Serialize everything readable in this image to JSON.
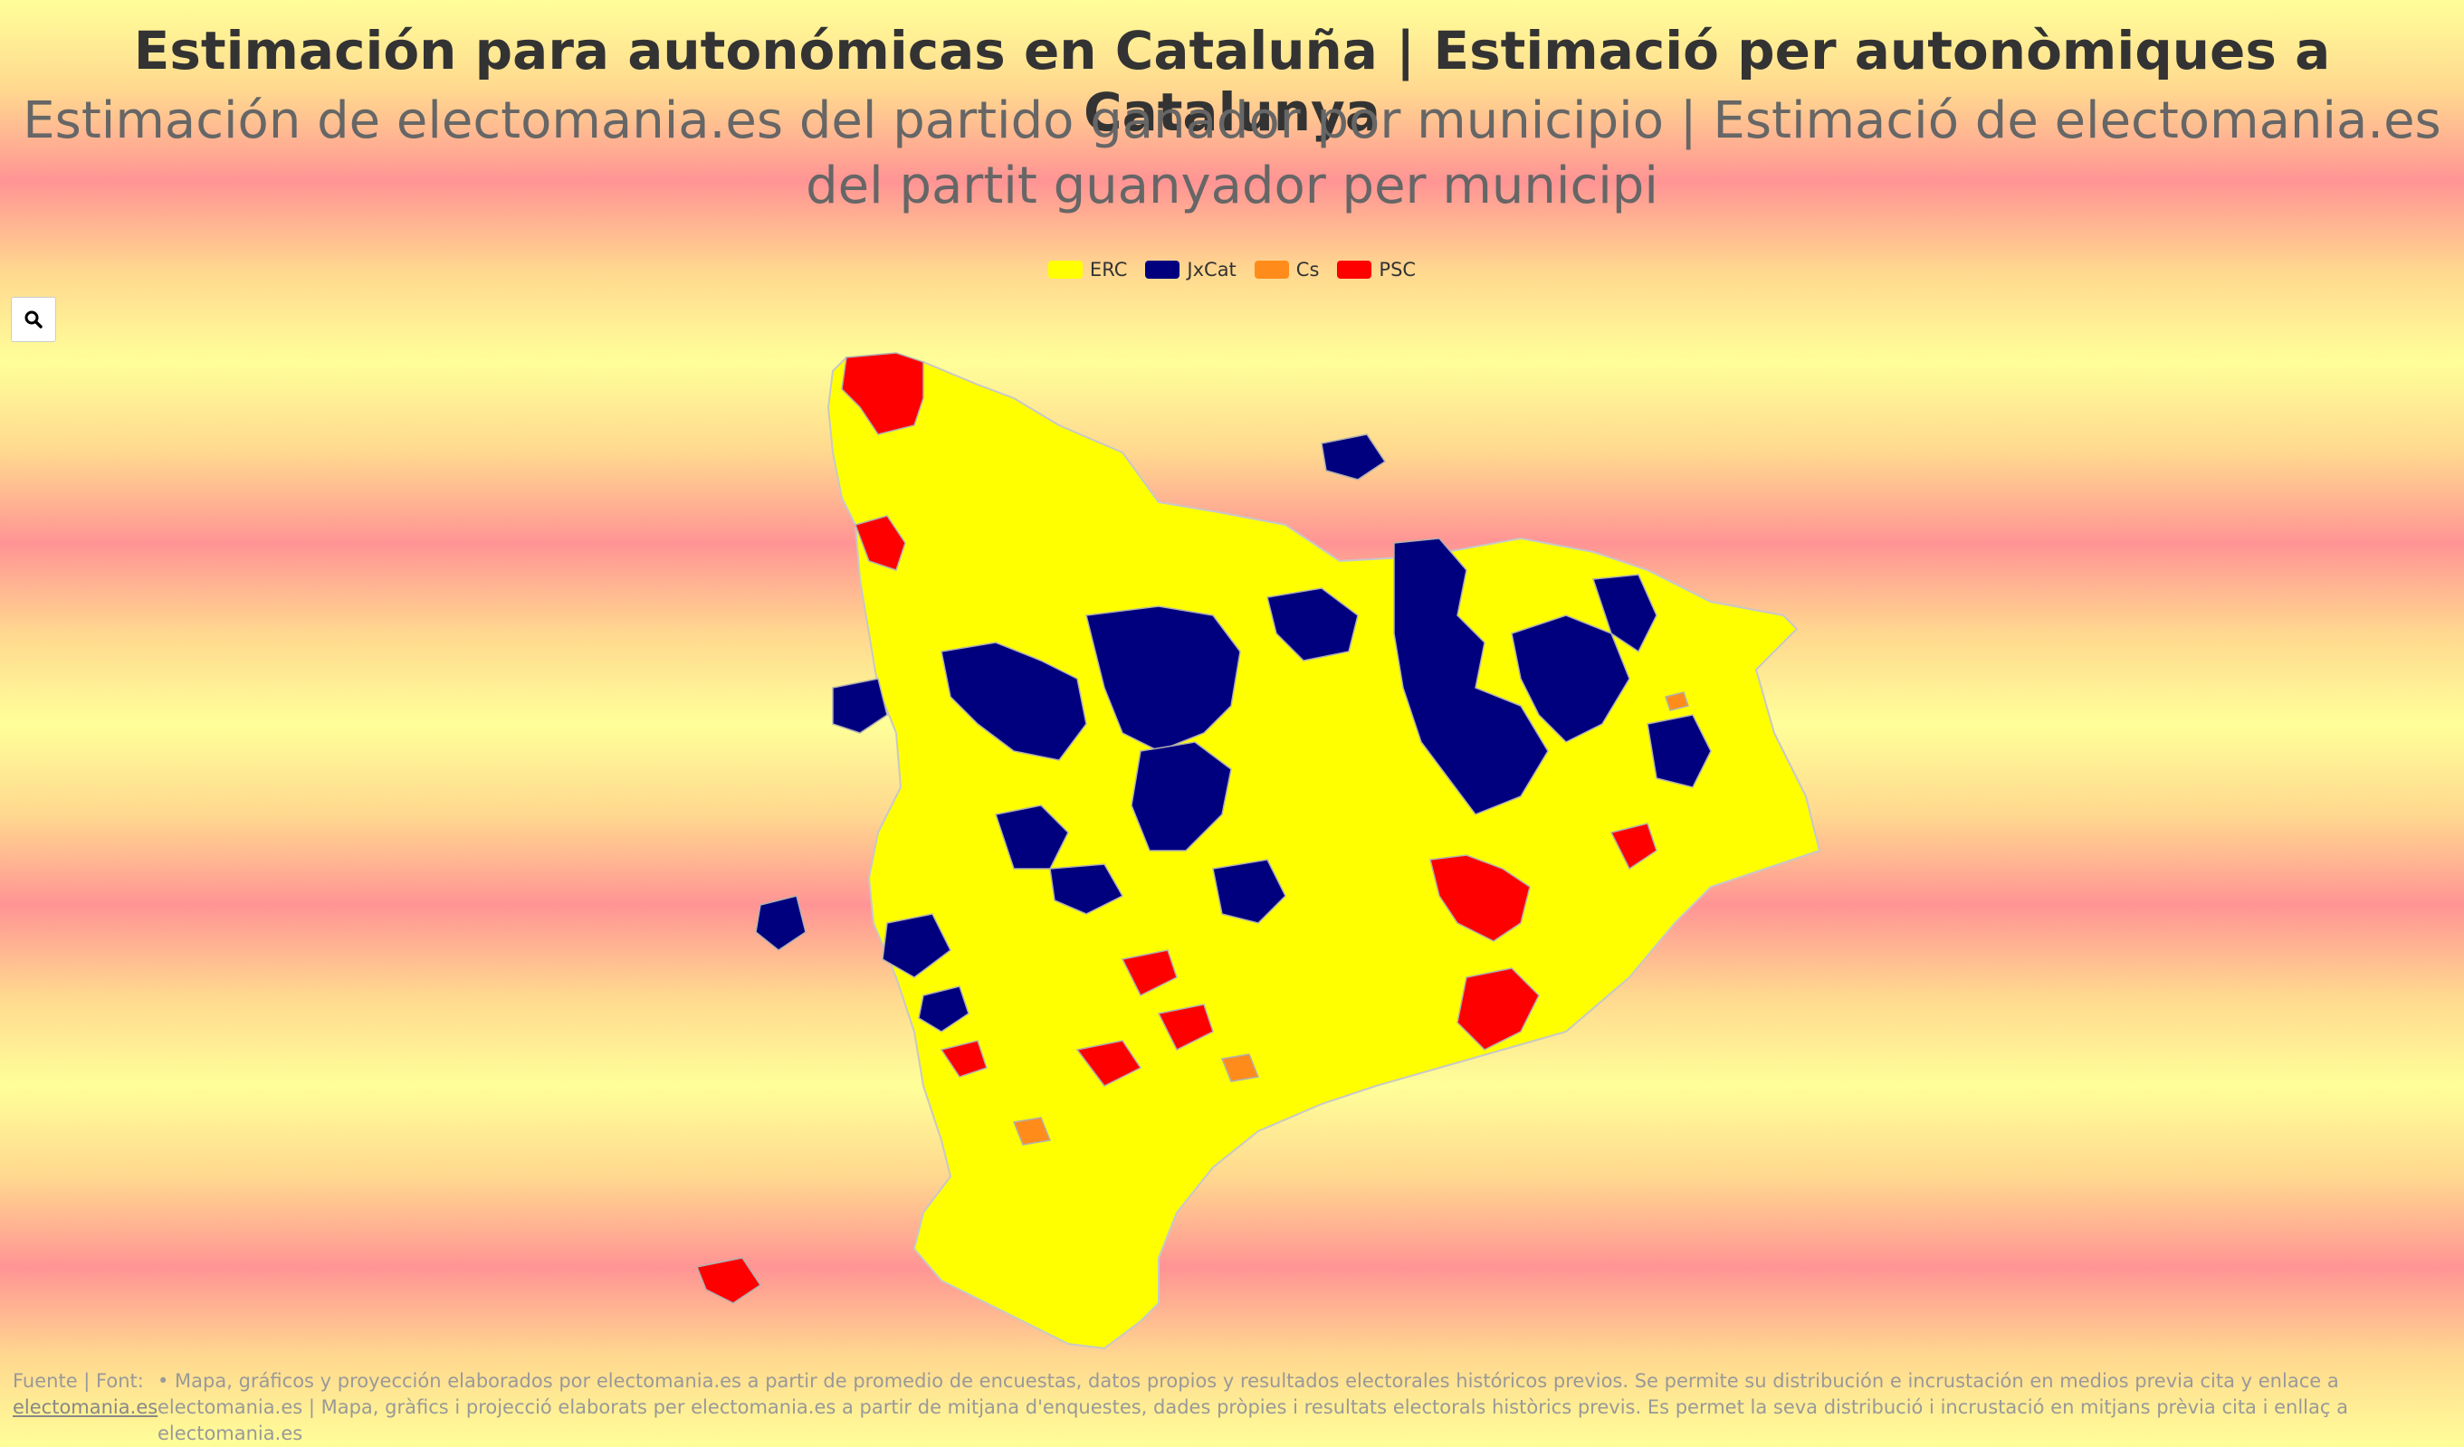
{
  "title": "Estimación para autonómicas en Cataluña | Estimació per autonòmiques a Catalunya",
  "subtitle": "Estimación de electomania.es del partido ganador por municipio | Estimació de electomania.es del partit guanyador per municipi",
  "legend": [
    {
      "label": "ERC",
      "color": "#ffff00"
    },
    {
      "label": "JxCat",
      "color": "#00007f"
    },
    {
      "label": "Cs",
      "color": "#ff8c1a"
    },
    {
      "label": "PSC",
      "color": "#ff0000"
    }
  ],
  "zoom": {
    "icon": "search-icon"
  },
  "footer": {
    "label": "Fuente | Font:",
    "link": "electomania.es",
    "text": "• Mapa, gráficos y proyección elaborados por electomania.es a partir de promedio de encuestas, datos propios y resultados electorales históricos previos. Se permite su distribución e incrustación en medios previa cita y enlace a electomania.es | Mapa, gràfics i projecció elaborats per electomania.es a partir de mitjana d'enquestes, dades pròpies i resultats electorals històrics previs. Es permet la seva distribució i incrustació en mitjans prèvia cita i enllaç a electomania.es"
  }
}
